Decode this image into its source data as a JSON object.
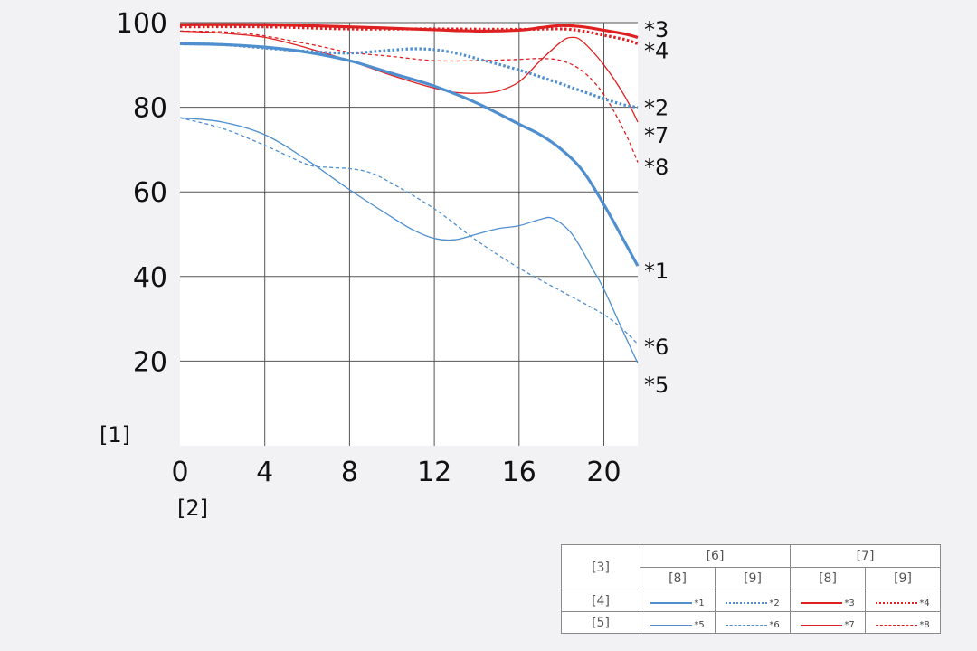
{
  "chart_data": {
    "type": "line",
    "title": "",
    "ylabel": "[1]",
    "xlabel": "[2]",
    "xlim": [
      0,
      21.6
    ],
    "ylim": [
      0,
      100
    ],
    "xticks": [
      0,
      4,
      8,
      12,
      16,
      20
    ],
    "yticks": [
      20,
      40,
      60,
      80,
      100
    ],
    "grid": true,
    "series": [
      {
        "name": "*1",
        "color": "#4f8fcf",
        "width": 3.2,
        "dash": "solid",
        "points": [
          [
            0,
            95
          ],
          [
            2,
            94.8
          ],
          [
            4,
            94.2
          ],
          [
            6,
            93
          ],
          [
            8,
            91
          ],
          [
            10,
            88
          ],
          [
            12,
            85
          ],
          [
            14,
            81
          ],
          [
            16,
            76
          ],
          [
            17,
            73.5
          ],
          [
            18,
            70
          ],
          [
            19,
            65
          ],
          [
            20,
            57
          ],
          [
            21,
            48
          ],
          [
            21.6,
            42.5
          ]
        ]
      },
      {
        "name": "*2",
        "color": "#4f8fcf",
        "width": 3.2,
        "dash": "dotted",
        "points": [
          [
            0,
            95
          ],
          [
            2,
            94.8
          ],
          [
            4,
            94
          ],
          [
            6,
            93.2
          ],
          [
            8,
            92.8
          ],
          [
            10,
            93.5
          ],
          [
            11,
            93.8
          ],
          [
            12,
            93.6
          ],
          [
            13,
            92.8
          ],
          [
            14,
            91.5
          ],
          [
            16,
            88.8
          ],
          [
            18,
            85.5
          ],
          [
            20,
            82
          ],
          [
            21,
            80.5
          ],
          [
            21.6,
            80
          ]
        ]
      },
      {
        "name": "*3",
        "color": "#e02020",
        "width": 3.2,
        "dash": "solid",
        "points": [
          [
            0,
            99.5
          ],
          [
            4,
            99.5
          ],
          [
            8,
            99
          ],
          [
            12,
            98.3
          ],
          [
            14,
            98
          ],
          [
            16,
            98.2
          ],
          [
            17,
            98.8
          ],
          [
            18,
            99.3
          ],
          [
            19,
            99
          ],
          [
            20,
            98.2
          ],
          [
            21,
            97.3
          ],
          [
            21.6,
            96.5
          ]
        ]
      },
      {
        "name": "*4",
        "color": "#e02020",
        "width": 3.2,
        "dash": "dotted",
        "points": [
          [
            0,
            99
          ],
          [
            4,
            99
          ],
          [
            8,
            98.5
          ],
          [
            12,
            98.5
          ],
          [
            16,
            98.4
          ],
          [
            18,
            98.5
          ],
          [
            19,
            98
          ],
          [
            20,
            97
          ],
          [
            21,
            96
          ],
          [
            21.6,
            95
          ]
        ]
      },
      {
        "name": "*5",
        "color": "#4f8fcf",
        "width": 1.3,
        "dash": "solid",
        "points": [
          [
            0,
            77.5
          ],
          [
            2,
            76.5
          ],
          [
            4,
            73.5
          ],
          [
            6,
            67.5
          ],
          [
            8,
            60.5
          ],
          [
            10,
            54
          ],
          [
            11,
            51
          ],
          [
            12,
            49
          ],
          [
            13,
            48.7
          ],
          [
            14,
            50
          ],
          [
            15,
            51.3
          ],
          [
            16,
            52
          ],
          [
            17,
            53.5
          ],
          [
            17.6,
            53.7
          ],
          [
            18.5,
            50
          ],
          [
            19.5,
            41.5
          ],
          [
            20,
            37
          ],
          [
            21,
            26
          ],
          [
            21.6,
            19.5
          ]
        ]
      },
      {
        "name": "*6",
        "color": "#4f8fcf",
        "width": 1.3,
        "dash": "dashed",
        "points": [
          [
            0,
            77.5
          ],
          [
            2,
            75
          ],
          [
            4,
            71
          ],
          [
            6,
            66.5
          ],
          [
            7,
            65.8
          ],
          [
            8,
            65.5
          ],
          [
            9,
            64.5
          ],
          [
            10,
            62
          ],
          [
            12,
            56
          ],
          [
            14,
            48.5
          ],
          [
            16,
            42
          ],
          [
            18,
            36.5
          ],
          [
            20,
            31
          ],
          [
            21,
            27
          ],
          [
            21.6,
            24
          ]
        ]
      },
      {
        "name": "*7",
        "color": "#e02020",
        "width": 1.3,
        "dash": "solid",
        "points": [
          [
            0,
            98
          ],
          [
            2,
            97.5
          ],
          [
            4,
            96.5
          ],
          [
            6,
            94
          ],
          [
            8,
            91
          ],
          [
            10,
            87.5
          ],
          [
            12,
            84.5
          ],
          [
            13,
            83.5
          ],
          [
            14,
            83.3
          ],
          [
            15,
            83.8
          ],
          [
            16,
            86
          ],
          [
            17,
            91
          ],
          [
            18,
            95.5
          ],
          [
            18.5,
            96.5
          ],
          [
            19,
            95.5
          ],
          [
            20,
            90
          ],
          [
            21,
            82.5
          ],
          [
            21.6,
            76.5
          ]
        ]
      },
      {
        "name": "*8",
        "color": "#e02020",
        "width": 1.3,
        "dash": "dashed",
        "points": [
          [
            0,
            98
          ],
          [
            3,
            97.5
          ],
          [
            6,
            95
          ],
          [
            8,
            93
          ],
          [
            10,
            92
          ],
          [
            12,
            91
          ],
          [
            14,
            91
          ],
          [
            16,
            91.3
          ],
          [
            17,
            91.5
          ],
          [
            18,
            91
          ],
          [
            19,
            88.5
          ],
          [
            20,
            83
          ],
          [
            21,
            74
          ],
          [
            21.6,
            67
          ]
        ]
      }
    ],
    "end_labels": [
      {
        "text": "*3",
        "y": 98.5
      },
      {
        "text": "*4",
        "y": 93.5
      },
      {
        "text": "*2",
        "y": 80
      },
      {
        "text": "*7",
        "y": 73.5
      },
      {
        "text": "*8",
        "y": 66
      },
      {
        "text": "*1",
        "y": 41.5
      },
      {
        "text": "*6",
        "y": 23.5
      },
      {
        "text": "*5",
        "y": 14.5
      }
    ]
  },
  "legend": {
    "corner": "[3]",
    "group_a": "[6]",
    "group_b": "[7]",
    "sub_a": "[8]",
    "sub_b": "[9]",
    "sub_c": "[8]",
    "sub_d": "[9]",
    "row1": "[4]",
    "row2": "[5]",
    "c1": "*1",
    "c2": "*2",
    "c3": "*3",
    "c4": "*4",
    "c5": "*5",
    "c6": "*6",
    "c7": "*7",
    "c8": "*8"
  }
}
